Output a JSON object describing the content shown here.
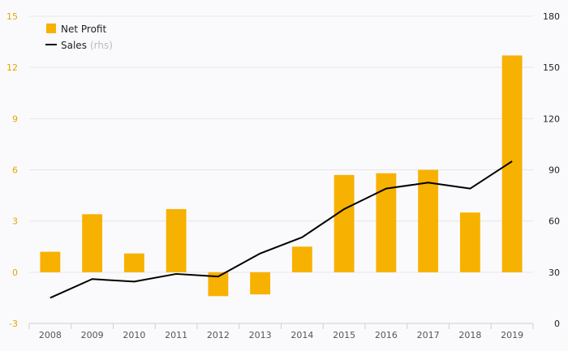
{
  "colors": {
    "bar": "#f7b100",
    "line": "#000000",
    "left_axis": "#e0a800",
    "right_axis": "#222222",
    "grid": "#e6e6e6",
    "background": "#fafafc"
  },
  "legend": {
    "placement": "top-left",
    "net_profit_label": "Net Profit",
    "sales_label": "Sales",
    "sales_suffix": "(rhs)"
  },
  "chart_data": {
    "type": "bar+line",
    "categories": [
      "2008",
      "2009",
      "2010",
      "2011",
      "2012",
      "2013",
      "2014",
      "2015",
      "2016",
      "2017",
      "2018",
      "2019"
    ],
    "series": [
      {
        "name": "Net Profit",
        "type": "bar",
        "axis": "left",
        "values": [
          1.2,
          3.4,
          1.1,
          3.7,
          -1.4,
          -1.3,
          1.5,
          5.7,
          5.8,
          6.0,
          3.5,
          12.7
        ]
      },
      {
        "name": "Sales",
        "type": "line",
        "axis": "right",
        "values": [
          15,
          26,
          24.5,
          29,
          27.5,
          41,
          50.5,
          67,
          79,
          82.5,
          79,
          95
        ]
      }
    ],
    "left_axis": {
      "min": -3,
      "max": 15,
      "ticks": [
        "-3",
        "0",
        "3",
        "6",
        "9",
        "12",
        "15"
      ]
    },
    "right_axis": {
      "min": 0,
      "max": 180,
      "ticks": [
        "0",
        "30",
        "60",
        "90",
        "120",
        "150",
        "180"
      ]
    },
    "grid": true
  }
}
